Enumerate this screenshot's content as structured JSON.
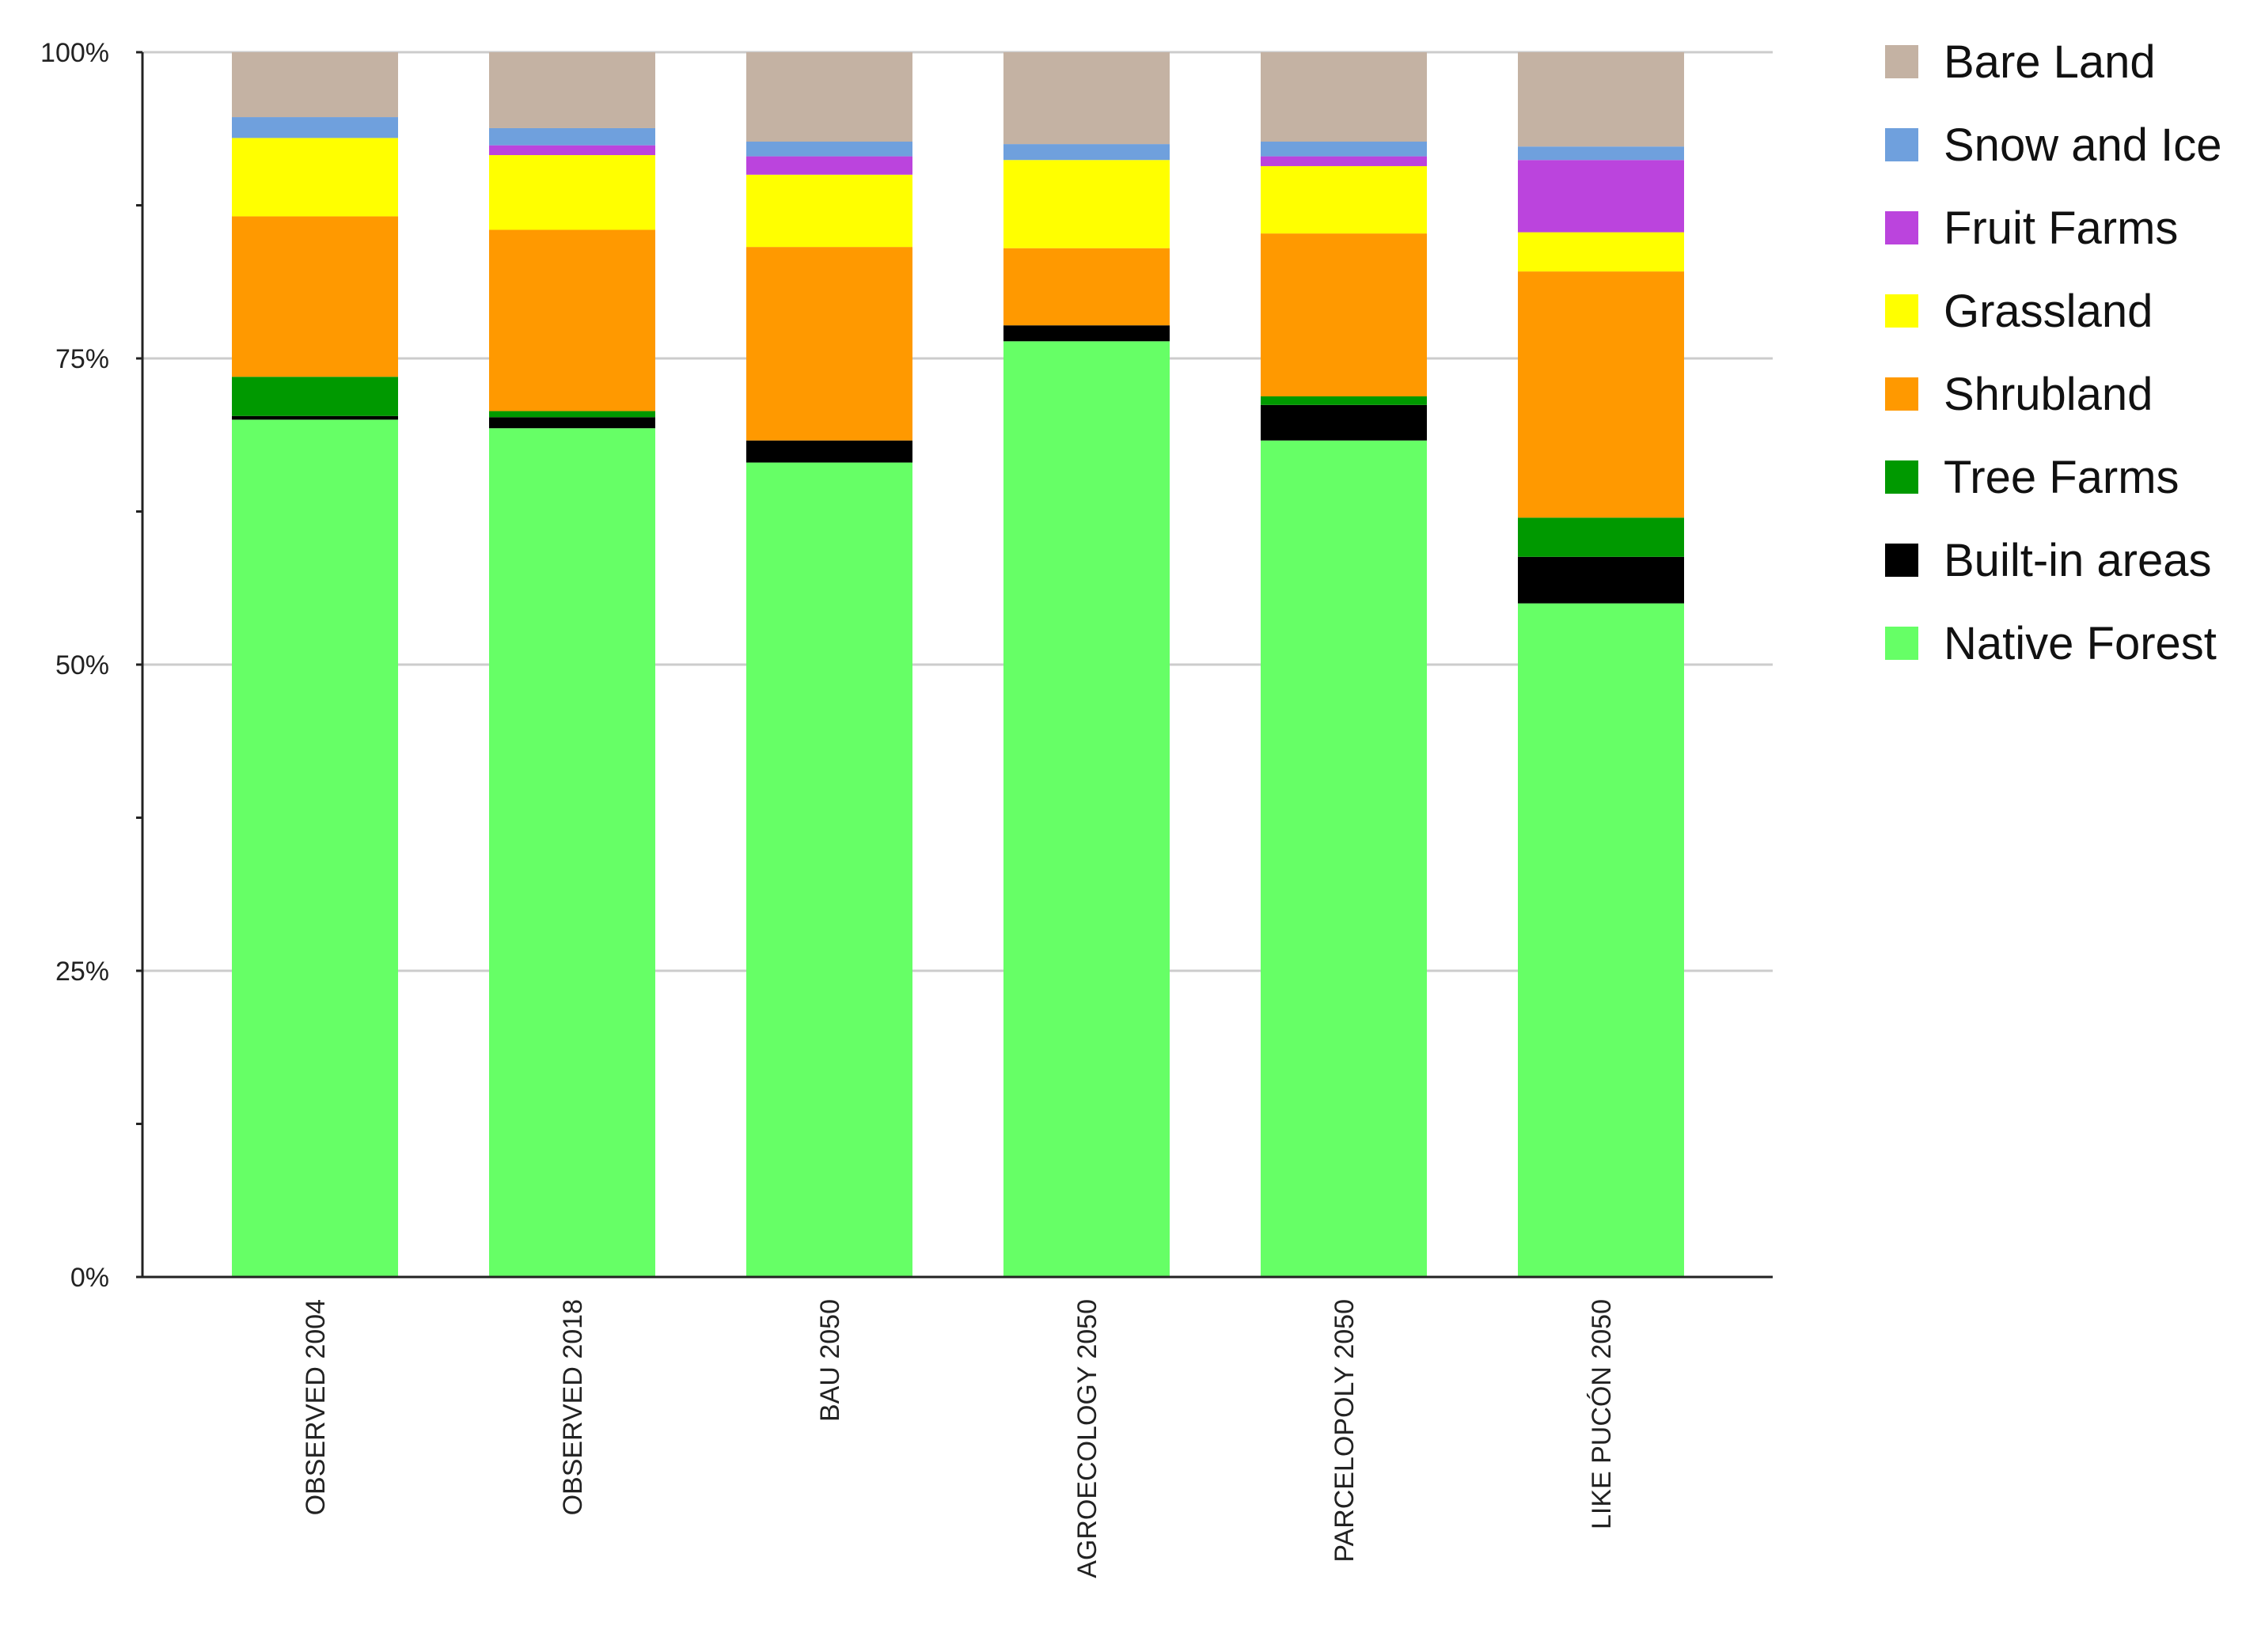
{
  "chart_data": {
    "type": "bar",
    "stacked": true,
    "normalized": true,
    "title": "",
    "xlabel": "",
    "ylabel": "",
    "ylim": [
      0,
      100
    ],
    "y_ticks": [
      {
        "value": 0,
        "label": "0%"
      },
      {
        "value": 25,
        "label": "25%"
      },
      {
        "value": 50,
        "label": "50%"
      },
      {
        "value": 75,
        "label": "75%"
      },
      {
        "value": 100,
        "label": "100%"
      }
    ],
    "grid": true,
    "legend_position": "right",
    "categories": [
      "OBSERVED 2004",
      "OBSERVED 2018",
      "BAU 2050",
      "AGROECOLOGY 2050",
      "PARCELOPOLY 2050",
      "LIKE PUCÓN 2050"
    ],
    "series": [
      {
        "name": "Native Forest",
        "color": "#66ff66",
        "values": [
          70.0,
          69.3,
          66.5,
          76.4,
          68.3,
          55.0
        ]
      },
      {
        "name": "Built-in areas",
        "color": "#000000",
        "values": [
          0.3,
          0.9,
          1.8,
          1.3,
          2.9,
          3.8
        ]
      },
      {
        "name": "Tree Farms",
        "color": "#009900",
        "values": [
          3.2,
          0.5,
          0.0,
          0.0,
          0.7,
          3.2
        ]
      },
      {
        "name": "Shrubland",
        "color": "#ff9900",
        "values": [
          13.1,
          14.8,
          15.8,
          6.3,
          13.3,
          20.1
        ]
      },
      {
        "name": "Grassland",
        "color": "#ffff00",
        "values": [
          6.4,
          6.1,
          5.9,
          7.2,
          5.5,
          3.2
        ]
      },
      {
        "name": "Fruit Farms",
        "color": "#bb44dd",
        "values": [
          0.0,
          0.8,
          1.5,
          0.0,
          0.8,
          5.9
        ]
      },
      {
        "name": "Snow and Ice",
        "color": "#6fa0dd",
        "values": [
          1.7,
          1.4,
          1.2,
          1.3,
          1.2,
          1.1
        ]
      },
      {
        "name": "Bare Land",
        "color": "#c4b2a3",
        "values": [
          5.3,
          6.2,
          7.3,
          7.5,
          7.3,
          7.7
        ]
      }
    ],
    "legend_order": [
      "Bare Land",
      "Snow and Ice",
      "Fruit Farms",
      "Grassland",
      "Shrubland",
      "Tree Farms",
      "Built-in areas",
      "Native Forest"
    ]
  }
}
